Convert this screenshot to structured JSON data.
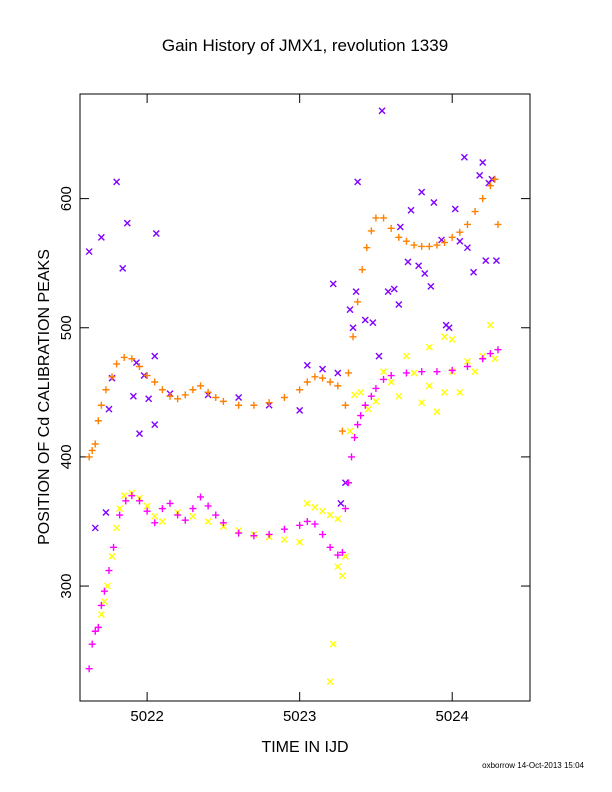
{
  "chart_data": {
    "type": "scatter",
    "title": "Gain History of JMX1, revolution 1339",
    "xlabel": "TIME IN IJD",
    "ylabel": "POSITION OF Cd CALIBRATION PEAKS",
    "xlim": [
      5021.56,
      5024.51
    ],
    "ylim": [
      211,
      681
    ],
    "x_ticks": [
      5022,
      5023,
      5024
    ],
    "y_ticks": [
      300,
      400,
      500,
      600
    ],
    "grid": false,
    "legend": "none",
    "credit": "oxborrow 14-Oct-2013 15:04",
    "series": [
      {
        "color": "#8000ff",
        "marker": "x",
        "points": [
          [
            5021.62,
            559
          ],
          [
            5021.66,
            345
          ],
          [
            5021.7,
            570
          ],
          [
            5021.73,
            357
          ],
          [
            5021.75,
            437
          ],
          [
            5021.77,
            461
          ],
          [
            5021.8,
            613
          ],
          [
            5021.84,
            546
          ],
          [
            5021.87,
            581
          ],
          [
            5021.91,
            447
          ],
          [
            5021.93,
            473
          ],
          [
            5021.95,
            418
          ],
          [
            5021.98,
            463
          ],
          [
            5022.01,
            445
          ],
          [
            5022.05,
            478
          ],
          [
            5022.05,
            425
          ],
          [
            5022.06,
            573
          ],
          [
            5022.15,
            449
          ],
          [
            5022.4,
            448
          ],
          [
            5022.6,
            446
          ],
          [
            5022.8,
            440
          ],
          [
            5023.0,
            436
          ],
          [
            5023.05,
            471
          ],
          [
            5023.15,
            468
          ],
          [
            5023.25,
            465
          ],
          [
            5023.22,
            534
          ],
          [
            5023.27,
            364
          ],
          [
            5023.3,
            380
          ],
          [
            5023.33,
            514
          ],
          [
            5023.35,
            500
          ],
          [
            5023.37,
            528
          ],
          [
            5023.38,
            613
          ],
          [
            5023.43,
            506
          ],
          [
            5023.48,
            504
          ],
          [
            5023.52,
            478
          ],
          [
            5023.54,
            668
          ],
          [
            5023.58,
            528
          ],
          [
            5023.62,
            530
          ],
          [
            5023.65,
            518
          ],
          [
            5023.66,
            578
          ],
          [
            5023.71,
            551
          ],
          [
            5023.73,
            591
          ],
          [
            5023.78,
            548
          ],
          [
            5023.8,
            605
          ],
          [
            5023.82,
            542
          ],
          [
            5023.86,
            532
          ],
          [
            5023.88,
            597
          ],
          [
            5023.93,
            568
          ],
          [
            5023.96,
            502
          ],
          [
            5023.98,
            500
          ],
          [
            5024.02,
            592
          ],
          [
            5024.05,
            567
          ],
          [
            5024.08,
            632
          ],
          [
            5024.1,
            562
          ],
          [
            5024.14,
            543
          ],
          [
            5024.18,
            618
          ],
          [
            5024.2,
            628
          ],
          [
            5024.22,
            552
          ],
          [
            5024.24,
            612
          ],
          [
            5024.26,
            615
          ],
          [
            5024.29,
            552
          ]
        ]
      },
      {
        "color": "#ff8000",
        "marker": "+",
        "points": [
          [
            5021.62,
            400
          ],
          [
            5021.64,
            405
          ],
          [
            5021.66,
            410
          ],
          [
            5021.68,
            428
          ],
          [
            5021.7,
            440
          ],
          [
            5021.73,
            452
          ],
          [
            5021.77,
            462
          ],
          [
            5021.8,
            472
          ],
          [
            5021.85,
            477
          ],
          [
            5021.9,
            476
          ],
          [
            5021.95,
            470
          ],
          [
            5022.0,
            463
          ],
          [
            5022.05,
            458
          ],
          [
            5022.1,
            452
          ],
          [
            5022.15,
            447
          ],
          [
            5022.2,
            445
          ],
          [
            5022.25,
            448
          ],
          [
            5022.3,
            452
          ],
          [
            5022.35,
            455
          ],
          [
            5022.4,
            450
          ],
          [
            5022.45,
            446
          ],
          [
            5022.5,
            443
          ],
          [
            5022.6,
            440
          ],
          [
            5022.7,
            440
          ],
          [
            5022.8,
            442
          ],
          [
            5022.9,
            446
          ],
          [
            5023.0,
            452
          ],
          [
            5023.05,
            458
          ],
          [
            5023.1,
            462
          ],
          [
            5023.15,
            461
          ],
          [
            5023.2,
            458
          ],
          [
            5023.25,
            455
          ],
          [
            5023.28,
            420
          ],
          [
            5023.3,
            440
          ],
          [
            5023.32,
            465
          ],
          [
            5023.35,
            493
          ],
          [
            5023.38,
            520
          ],
          [
            5023.41,
            545
          ],
          [
            5023.44,
            562
          ],
          [
            5023.47,
            575
          ],
          [
            5023.5,
            585
          ],
          [
            5023.55,
            585
          ],
          [
            5023.6,
            577
          ],
          [
            5023.65,
            570
          ],
          [
            5023.7,
            567
          ],
          [
            5023.75,
            564
          ],
          [
            5023.8,
            563
          ],
          [
            5023.85,
            563
          ],
          [
            5023.9,
            564
          ],
          [
            5023.95,
            566
          ],
          [
            5024.0,
            570
          ],
          [
            5024.05,
            574
          ],
          [
            5024.1,
            580
          ],
          [
            5024.15,
            590
          ],
          [
            5024.2,
            600
          ],
          [
            5024.25,
            610
          ],
          [
            5024.28,
            615
          ],
          [
            5024.3,
            580
          ]
        ]
      },
      {
        "color": "#ffff00",
        "marker": "x",
        "points": [
          [
            5021.7,
            278
          ],
          [
            5021.72,
            288
          ],
          [
            5021.74,
            300
          ],
          [
            5021.77,
            323
          ],
          [
            5021.8,
            345
          ],
          [
            5021.82,
            360
          ],
          [
            5021.85,
            370
          ],
          [
            5021.9,
            372
          ],
          [
            5021.95,
            368
          ],
          [
            5022.0,
            362
          ],
          [
            5022.05,
            354
          ],
          [
            5022.1,
            350
          ],
          [
            5022.2,
            357
          ],
          [
            5022.3,
            354
          ],
          [
            5022.4,
            350
          ],
          [
            5022.5,
            346
          ],
          [
            5022.6,
            343
          ],
          [
            5022.7,
            340
          ],
          [
            5022.8,
            338
          ],
          [
            5022.9,
            336
          ],
          [
            5023.0,
            334
          ],
          [
            5023.05,
            364
          ],
          [
            5023.1,
            361
          ],
          [
            5023.15,
            358
          ],
          [
            5023.2,
            355
          ],
          [
            5023.25,
            352
          ],
          [
            5023.22,
            255
          ],
          [
            5023.2,
            226
          ],
          [
            5023.25,
            315
          ],
          [
            5023.28,
            308
          ],
          [
            5023.3,
            323
          ],
          [
            5023.33,
            420
          ],
          [
            5023.36,
            448
          ],
          [
            5023.4,
            450
          ],
          [
            5023.45,
            437
          ],
          [
            5023.5,
            443
          ],
          [
            5023.55,
            466
          ],
          [
            5023.6,
            458
          ],
          [
            5023.65,
            447
          ],
          [
            5023.7,
            478
          ],
          [
            5023.75,
            465
          ],
          [
            5023.8,
            442
          ],
          [
            5023.85,
            455
          ],
          [
            5023.9,
            435
          ],
          [
            5023.95,
            450
          ],
          [
            5024.0,
            466
          ],
          [
            5024.05,
            450
          ],
          [
            5024.1,
            474
          ],
          [
            5024.15,
            466
          ],
          [
            5024.2,
            478
          ],
          [
            5024.25,
            502
          ],
          [
            5024.28,
            476
          ],
          [
            5023.85,
            485
          ],
          [
            5023.95,
            493
          ],
          [
            5024.0,
            491
          ]
        ]
      },
      {
        "color": "#ff00ff",
        "marker": "+",
        "points": [
          [
            5021.62,
            236
          ],
          [
            5021.64,
            255
          ],
          [
            5021.66,
            265
          ],
          [
            5021.68,
            268
          ],
          [
            5021.7,
            285
          ],
          [
            5021.72,
            296
          ],
          [
            5021.75,
            312
          ],
          [
            5021.78,
            330
          ],
          [
            5021.82,
            355
          ],
          [
            5021.86,
            366
          ],
          [
            5021.9,
            370
          ],
          [
            5021.95,
            366
          ],
          [
            5022.0,
            358
          ],
          [
            5022.05,
            349
          ],
          [
            5022.1,
            360
          ],
          [
            5022.15,
            364
          ],
          [
            5022.2,
            355
          ],
          [
            5022.25,
            351
          ],
          [
            5022.3,
            360
          ],
          [
            5022.35,
            369
          ],
          [
            5022.4,
            362
          ],
          [
            5022.45,
            355
          ],
          [
            5022.5,
            349
          ],
          [
            5022.6,
            341
          ],
          [
            5022.7,
            339
          ],
          [
            5022.8,
            340
          ],
          [
            5022.9,
            344
          ],
          [
            5023.0,
            347
          ],
          [
            5023.05,
            350
          ],
          [
            5023.1,
            348
          ],
          [
            5023.15,
            340
          ],
          [
            5023.2,
            330
          ],
          [
            5023.25,
            324
          ],
          [
            5023.28,
            326
          ],
          [
            5023.3,
            360
          ],
          [
            5023.32,
            380
          ],
          [
            5023.34,
            400
          ],
          [
            5023.36,
            415
          ],
          [
            5023.38,
            425
          ],
          [
            5023.4,
            432
          ],
          [
            5023.43,
            440
          ],
          [
            5023.47,
            447
          ],
          [
            5023.5,
            453
          ],
          [
            5023.55,
            460
          ],
          [
            5023.6,
            463
          ],
          [
            5023.7,
            465
          ],
          [
            5023.8,
            466
          ],
          [
            5023.9,
            466
          ],
          [
            5024.0,
            467
          ],
          [
            5024.1,
            470
          ],
          [
            5024.2,
            476
          ],
          [
            5024.25,
            480
          ],
          [
            5024.3,
            483
          ]
        ]
      }
    ]
  }
}
